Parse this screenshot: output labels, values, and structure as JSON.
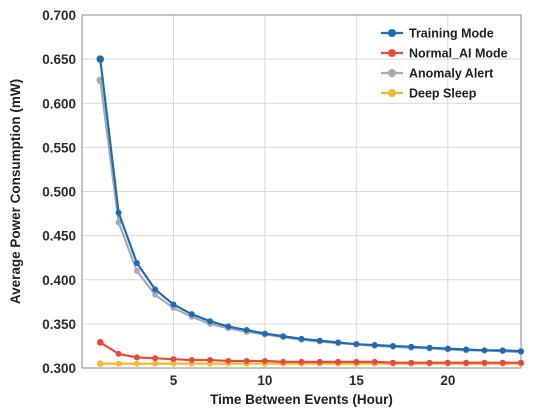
{
  "chart_data": {
    "type": "line",
    "xlabel": "Time Between Events (Hour)",
    "ylabel": "Average Power Consumption (mW)",
    "xlim": [
      0,
      24
    ],
    "ylim": [
      0.3,
      0.7
    ],
    "x_ticks": [
      5,
      10,
      15,
      20
    ],
    "y_ticks": [
      0.3,
      0.35,
      0.4,
      0.45,
      0.5,
      0.55,
      0.6,
      0.65,
      0.7
    ],
    "y_tick_labels": [
      "0.300",
      "0.350",
      "0.400",
      "0.450",
      "0.500",
      "0.550",
      "0.600",
      "0.650",
      "0.700"
    ],
    "grid": true,
    "legend_position": "top-right",
    "x": [
      1,
      2,
      3,
      4,
      5,
      6,
      7,
      8,
      9,
      10,
      11,
      12,
      13,
      14,
      15,
      16,
      17,
      18,
      19,
      20,
      21,
      22,
      23,
      24
    ],
    "series": [
      {
        "name": "Training Mode",
        "color": "#1f6bb0",
        "values": [
          0.65,
          0.476,
          0.419,
          0.389,
          0.372,
          0.361,
          0.353,
          0.347,
          0.343,
          0.339,
          0.336,
          0.333,
          0.331,
          0.329,
          0.327,
          0.326,
          0.325,
          0.324,
          0.323,
          0.322,
          0.321,
          0.32,
          0.32,
          0.319
        ]
      },
      {
        "name": "Normal_AI Mode",
        "color": "#e24a3b",
        "values": [
          0.329,
          0.316,
          0.312,
          0.311,
          0.31,
          0.309,
          0.309,
          0.308,
          0.308,
          0.308,
          0.307,
          0.307,
          0.307,
          0.307,
          0.307,
          0.307,
          0.306,
          0.306,
          0.306,
          0.306,
          0.306,
          0.306,
          0.306,
          0.306
        ]
      },
      {
        "name": "Anomaly Alert",
        "color": "#a9a9b3",
        "values": [
          0.626,
          0.465,
          0.41,
          0.383,
          0.368,
          0.358,
          0.35,
          0.345,
          0.341,
          0.338,
          0.335,
          0.332,
          0.33,
          0.328,
          0.327,
          0.325,
          0.324,
          0.323,
          0.322,
          0.321,
          0.32,
          0.32,
          0.319,
          0.318
        ]
      },
      {
        "name": "Deep Sleep",
        "color": "#f2b935",
        "values": [
          0.305,
          0.305,
          0.305,
          0.305,
          0.305,
          0.305,
          0.305,
          0.305,
          0.305,
          0.305,
          0.305,
          0.305,
          0.305,
          0.305,
          0.305,
          0.305,
          0.305,
          0.305,
          0.305,
          0.305,
          0.305,
          0.305,
          0.305,
          0.305
        ]
      }
    ]
  }
}
